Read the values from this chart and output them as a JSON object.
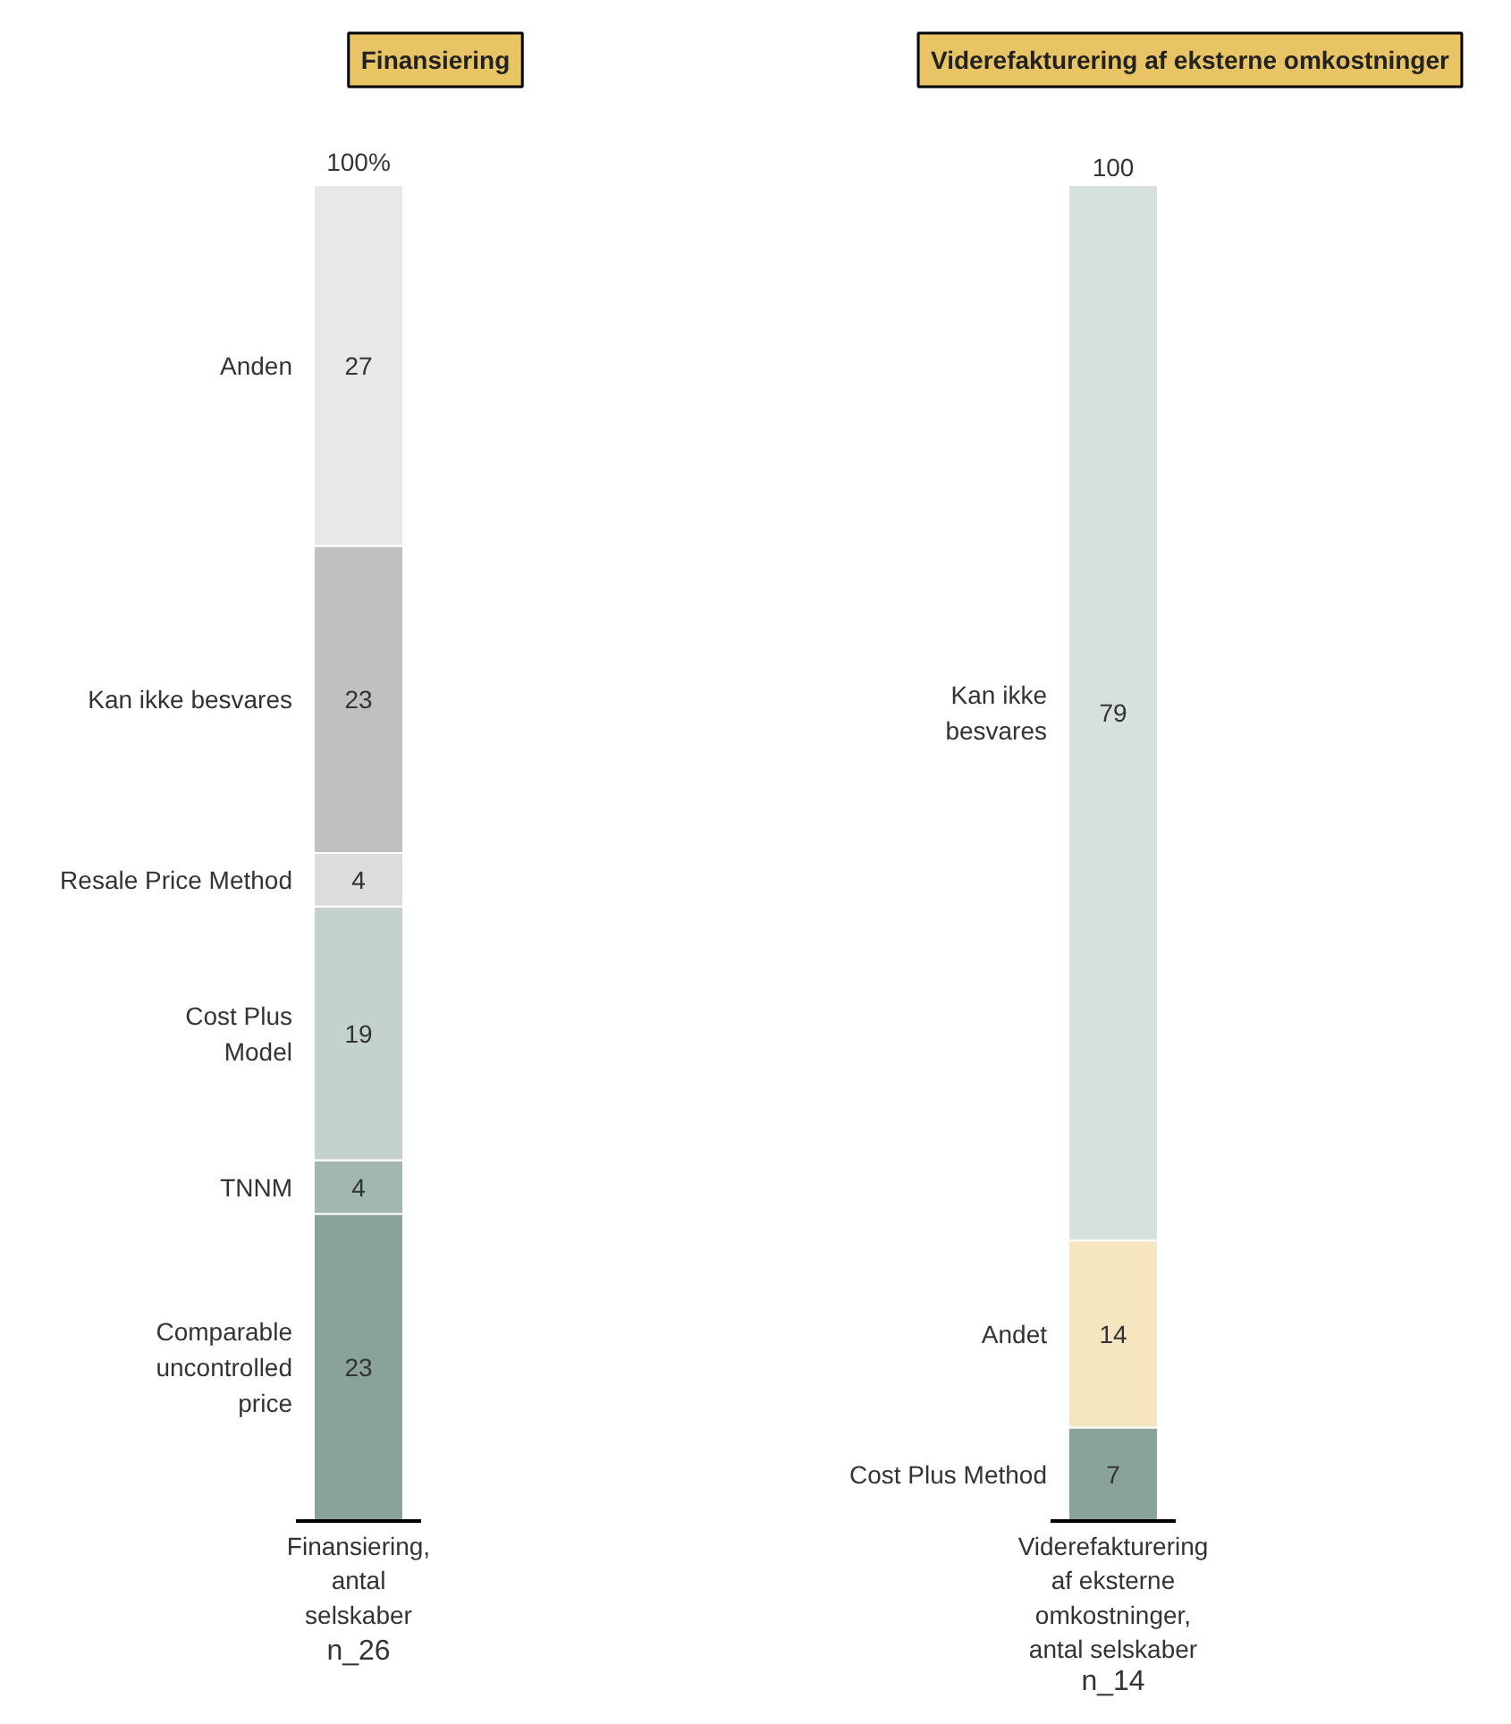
{
  "chart_data": [
    {
      "type": "bar",
      "stacked": true,
      "title": "Finansiering",
      "categories": [
        "Finansiering,\nantal\nselskaber"
      ],
      "data_labels": true,
      "totals": [
        "100%"
      ],
      "annotations": [
        "n_26"
      ],
      "series": [
        {
          "name": "Comparable\nuncontrolled\nprice",
          "color": "#8aa398",
          "values": [
            23
          ]
        },
        {
          "name": "TNNM",
          "color": "#a2b7ad",
          "values": [
            4
          ]
        },
        {
          "name": "Cost Plus\nModel",
          "color": "#c4d2cc",
          "values": [
            19
          ]
        },
        {
          "name": "Resale Price Method",
          "color": "#dcdcdc",
          "values": [
            4
          ]
        },
        {
          "name": "Kan ikke besvares",
          "color": "#c0c0c0",
          "values": [
            23
          ]
        },
        {
          "name": "Anden",
          "color": "#e8e8e8",
          "values": [
            27
          ]
        }
      ]
    },
    {
      "type": "bar",
      "stacked": true,
      "title": "Viderefakturering af eksterne omkostninger",
      "categories": [
        "Viderefakturering\naf eksterne\nomkostninger,\nantal selskaber"
      ],
      "data_labels": true,
      "totals": [
        "100"
      ],
      "annotations": [
        "n_14"
      ],
      "series": [
        {
          "name": "Cost Plus Method",
          "color": "#8aa398",
          "values": [
            7
          ]
        },
        {
          "name": "Andet",
          "color": "#f5e6c0",
          "values": [
            14
          ]
        },
        {
          "name": "Kan ikke\nbesvares",
          "color": "#d6e0dc",
          "values": [
            79
          ]
        }
      ]
    }
  ]
}
